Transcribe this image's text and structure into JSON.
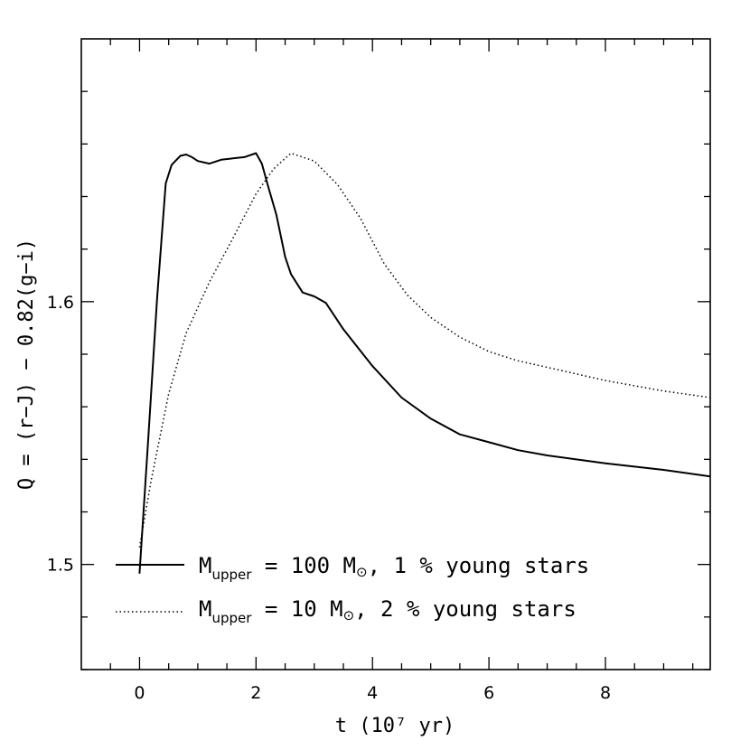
{
  "chart_data": {
    "type": "line",
    "title": "",
    "xlabel": "t (10⁷ yr)",
    "ylabel": "Q = (r−J) − 0.82(g−i)",
    "xlim": [
      -1,
      9.8
    ],
    "ylim": [
      1.46,
      1.7
    ],
    "x_ticks_major": [
      0,
      2,
      4,
      6,
      8
    ],
    "x_tick_labels": [
      "0",
      "2",
      "4",
      "6",
      "8"
    ],
    "x_ticks_minor": [
      -0.5,
      0.5,
      1,
      1.5,
      2.5,
      3,
      3.5,
      4.5,
      5,
      5.5,
      6.5,
      7,
      7.5,
      8.5,
      9,
      9.5
    ],
    "y_ticks_major": [
      1.5,
      1.6
    ],
    "y_tick_labels": [
      "1.5",
      "1.6"
    ],
    "y_ticks_minor": [
      1.46,
      1.48,
      1.52,
      1.54,
      1.56,
      1.58,
      1.62,
      1.64,
      1.66,
      1.68
    ],
    "grid": false,
    "legend_position": "bottom-left",
    "series": [
      {
        "name": "M_upper = 100 M⊙, 1 % young stars",
        "style": "solid",
        "x": [
          0,
          0.15,
          0.3,
          0.45,
          0.55,
          0.7,
          0.8,
          0.9,
          1.0,
          1.2,
          1.4,
          1.6,
          1.8,
          2.0,
          2.1,
          2.2,
          2.35,
          2.5,
          2.6,
          2.8,
          3.0,
          3.2,
          3.5,
          4.0,
          4.5,
          5.0,
          5.5,
          6.0,
          6.5,
          7.0,
          8.0,
          9.0,
          9.8
        ],
        "y": [
          1.4965,
          1.548,
          1.601,
          1.645,
          1.652,
          1.6555,
          1.656,
          1.655,
          1.6535,
          1.6525,
          1.654,
          1.6545,
          1.655,
          1.6565,
          1.6525,
          1.6445,
          1.633,
          1.617,
          1.6105,
          1.6035,
          1.602,
          1.5995,
          1.5895,
          1.5755,
          1.5635,
          1.5555,
          1.5495,
          1.5465,
          1.5435,
          1.5415,
          1.5385,
          1.536,
          1.5335
        ]
      },
      {
        "name": "M_upper = 10 M⊙, 2 % young stars",
        "style": "dotted",
        "x": [
          0,
          0.2,
          0.5,
          0.8,
          1.2,
          1.6,
          2.0,
          2.3,
          2.6,
          3.0,
          3.4,
          3.8,
          4.2,
          4.6,
          5.0,
          5.5,
          6.0,
          6.5,
          7.0,
          7.5,
          8.0,
          9.0,
          9.8
        ],
        "y": [
          1.5065,
          1.532,
          1.565,
          1.588,
          1.6075,
          1.624,
          1.641,
          1.6505,
          1.6565,
          1.6535,
          1.6445,
          1.6315,
          1.6145,
          1.6025,
          1.594,
          1.5865,
          1.581,
          1.5775,
          1.575,
          1.5725,
          1.57,
          1.566,
          1.5635
        ]
      }
    ],
    "legend": {
      "entries": [
        {
          "prefix": "M",
          "sub": "upper",
          "suffix": " = 100 M",
          "sun": "⊙",
          "tail": ", 1 % young stars"
        },
        {
          "prefix": "M",
          "sub": "upper",
          "suffix": " = 10 M",
          "sun": "⊙",
          "tail": ", 2 % young stars"
        }
      ]
    }
  }
}
